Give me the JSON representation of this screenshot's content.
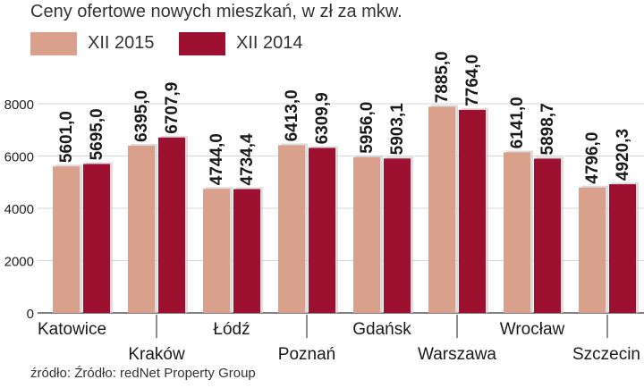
{
  "chart_data": {
    "type": "bar",
    "title": "Ceny ofertowe nowych  mieszkań, w zł za mkw.",
    "categories": [
      "Katowice",
      "Kraków",
      "Łódź",
      "Poznań",
      "Gdańsk",
      "Warszawa",
      "Wrocław",
      "Szczecin"
    ],
    "series": [
      {
        "name": "XII 2015",
        "color": "#d9a08b",
        "values": [
          5601.0,
          6395.0,
          4744.0,
          6413.0,
          5956.0,
          7885.0,
          6141.0,
          4796.0
        ],
        "labels": [
          "5601,0",
          "6395,0",
          "4744,0",
          "6413,0",
          "5956,0",
          "7885,0",
          "6141,0",
          "4796,0"
        ]
      },
      {
        "name": "XII 2014",
        "color": "#9e1030",
        "values": [
          5695.0,
          6707.9,
          4734.4,
          6309.9,
          5903.1,
          7764.0,
          5898.7,
          4920.3
        ],
        "labels": [
          "5695,0",
          "6707,9",
          "4734,4",
          "6309,9",
          "5903,1",
          "7764,0",
          "5898,7",
          "4920,3"
        ]
      }
    ],
    "yticks": [
      0,
      2000,
      4000,
      6000,
      8000
    ],
    "ylim": [
      0,
      8000
    ],
    "grid": true,
    "legend_position": "top-left"
  },
  "source": "źródło: Źródło: redNet Property Group"
}
